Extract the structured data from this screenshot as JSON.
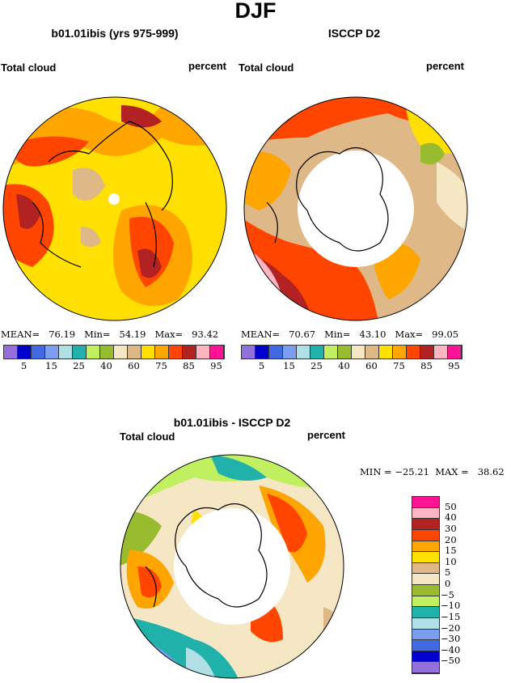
{
  "title": "DJF",
  "panels": [
    {
      "title": "b01.01ibis (yrs 975-999)",
      "left_label": "Total cloud",
      "right_label": "percent",
      "stats": {
        "mean_label": "MEAN=",
        "mean": "76.19",
        "min_label": "Min=",
        "min": "54.19",
        "max_label": "Max=",
        "max": "93.42"
      }
    },
    {
      "title": "ISCCP D2",
      "left_label": "Total cloud",
      "right_label": "percent",
      "stats": {
        "mean_label": "MEAN=",
        "mean": "70.67",
        "min_label": "Min=",
        "min": "43.10",
        "max_label": "Max=",
        "max": "99.05"
      }
    }
  ],
  "diff_panel": {
    "title": "b01.01ibis - ISCCP D2",
    "left_label": "Total cloud",
    "right_label": "percent",
    "stats_text": "MIN = −25.21  MAX =   38.62"
  },
  "colorbar_top": {
    "colors": [
      "#9370db",
      "#0000cd",
      "#4169e1",
      "#7b9ef0",
      "#b0e0e6",
      "#20b2aa",
      "#c0f060",
      "#98bb30",
      "#f5e6c4",
      "#deb887",
      "#ffe000",
      "#ffa500",
      "#ff4500",
      "#b22222",
      "#ffb6c1",
      "#ff1493"
    ],
    "labels": [
      "5",
      "15",
      "25",
      "40",
      "60",
      "75",
      "85",
      "95"
    ]
  },
  "colorbar_diff": {
    "colors": [
      "#ff1493",
      "#ffb6c1",
      "#b22222",
      "#ff4500",
      "#ffa500",
      "#ffe000",
      "#deb887",
      "#f5e6c4",
      "#98bb30",
      "#c0f060",
      "#20b2aa",
      "#b0e0e6",
      "#7b9ef0",
      "#4169e1",
      "#0000cd",
      "#9370db"
    ],
    "labels": [
      "50",
      "40",
      "30",
      "20",
      "15",
      "10",
      "5",
      "0",
      "−5",
      "−10",
      "−15",
      "−20",
      "−30",
      "−40",
      "−50"
    ]
  },
  "chart_data": {
    "type": "heatmap",
    "projection": "north polar stereographic",
    "season": "DJF",
    "variable": "Total cloud",
    "units": "percent",
    "maps": [
      {
        "name": "b01.01ibis (yrs 975-999)",
        "mean": 76.19,
        "min": 54.19,
        "max": 93.42
      },
      {
        "name": "ISCCP D2",
        "mean": 70.67,
        "min": 43.1,
        "max": 99.05
      },
      {
        "name": "b01.01ibis - ISCCP D2",
        "min": -25.21,
        "max": 38.62
      }
    ]
  }
}
